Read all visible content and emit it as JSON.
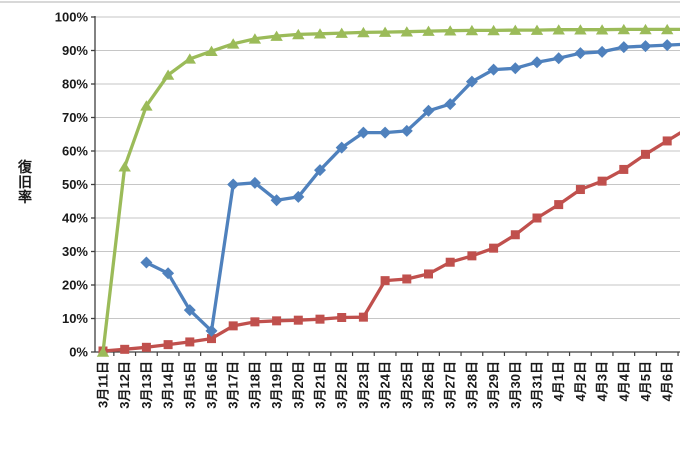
{
  "chart_data": {
    "type": "line",
    "title": "",
    "ylabel": "復旧率",
    "xlabel": "",
    "legend": "none",
    "grid": true,
    "ylim": [
      0,
      100
    ],
    "yticks": [
      "0%",
      "10%",
      "20%",
      "30%",
      "40%",
      "50%",
      "60%",
      "70%",
      "80%",
      "90%",
      "100%"
    ],
    "categories": [
      "3月11日",
      "3月12日",
      "3月13日",
      "3月14日",
      "3月15日",
      "3月16日",
      "3月17日",
      "3月18日",
      "3月19日",
      "3月20日",
      "3月21日",
      "3月22日",
      "3月23日",
      "3月24日",
      "3月25日",
      "3月26日",
      "3月27日",
      "3月28日",
      "3月29日",
      "3月30日",
      "3月31日",
      "4月1日",
      "4月2日",
      "4月3日",
      "4月4日",
      "4月5日",
      "4月6日"
    ],
    "series": [
      {
        "id": "series-red-square",
        "marker": "square",
        "color": "#C0504D",
        "values": [
          0.3,
          0.8,
          1.4,
          2.2,
          3,
          4,
          7.8,
          9,
          9.3,
          9.5,
          9.8,
          10.3,
          10.4,
          21.3,
          21.8,
          23.3,
          26.8,
          28.7,
          31,
          35,
          40,
          44,
          48.5,
          51,
          54.5,
          59,
          63
        ]
      },
      {
        "id": "series-blue-diamond",
        "marker": "diamond",
        "color": "#4F81BD",
        "values": [
          null,
          null,
          26.7,
          23.5,
          12.5,
          6.3,
          50,
          50.5,
          45.3,
          46.3,
          54.3,
          61,
          65.5,
          65.5,
          66,
          72,
          74,
          80.7,
          84.3,
          84.7,
          86.5,
          87.7,
          89.2,
          89.6,
          91,
          91.3,
          91.6
        ]
      },
      {
        "id": "series-green-triangle",
        "marker": "triangle",
        "color": "#9BBB59",
        "values": [
          0,
          55.3,
          73.5,
          82.7,
          87.5,
          89.8,
          92,
          93.5,
          94.3,
          94.8,
          95,
          95.2,
          95.4,
          95.5,
          95.6,
          95.8,
          95.9,
          96,
          96,
          96.1,
          96.1,
          96.2,
          96.2,
          96.2,
          96.3,
          96.3,
          96.3
        ]
      }
    ],
    "colors": {
      "gridline": "#C6C6C6",
      "axis": "#3F3F3F",
      "tick_label": "#1A1A1A",
      "top_border": "#CCCCCC",
      "background": "#FFFFFF"
    }
  }
}
